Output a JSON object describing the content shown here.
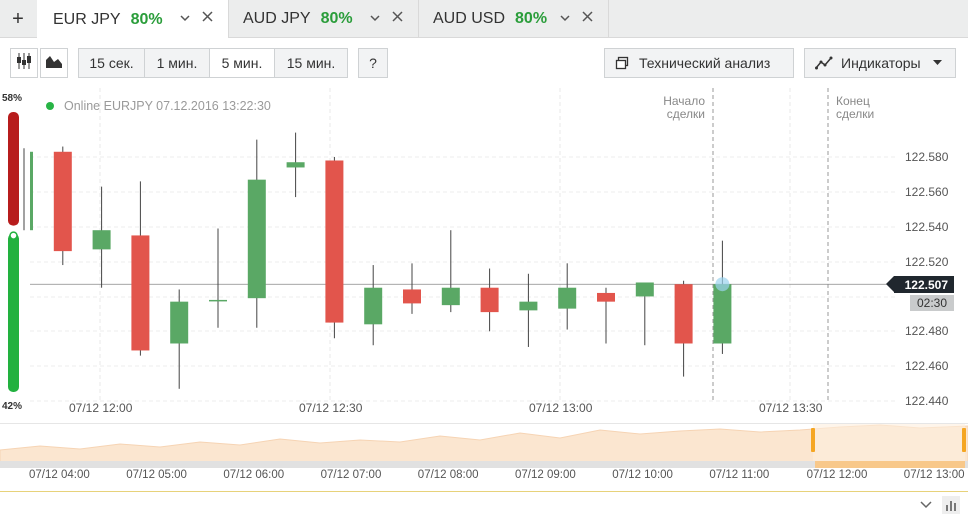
{
  "tabs": [
    {
      "symbol": "EUR JPY",
      "payout": "80%"
    },
    {
      "symbol": "AUD JPY",
      "payout": "80%"
    },
    {
      "symbol": "AUD USD",
      "payout": "80%"
    }
  ],
  "tab_add_label": "+",
  "toolbar": {
    "timeframes": [
      "15 сек.",
      "1 мин.",
      "5 мин.",
      "15 мин."
    ],
    "selected_timeframe": "5 мин.",
    "help_label": "?",
    "tech_analysis_label": "Технический анализ",
    "indicators_label": "Индикаторы"
  },
  "sentiment": {
    "up": "58%",
    "down": "42%",
    "up_fraction": 0.58
  },
  "status_text": "Online EURJPY 07.12.2016 13:22:30",
  "deal_start_label": [
    "Начало",
    "сделки"
  ],
  "deal_end_label": [
    "Конец",
    "сделки"
  ],
  "current_price": "122.507",
  "countdown": "02:30",
  "colors": {
    "up": "#5aa865",
    "down": "#e2554c",
    "payout": "#2a9d3a",
    "sentiment_up": "#22b13f",
    "sentiment_down": "#b71c1c"
  },
  "chart_data": {
    "type": "candlestick",
    "price_ticks": [
      "122.580",
      "122.560",
      "122.540",
      "122.520",
      "122.500",
      "122.480",
      "122.460",
      "122.440"
    ],
    "time_ticks": [
      "07/12 12:00",
      "07/12 12:30",
      "07/12 13:00",
      "07/12 13:30"
    ],
    "candles": [
      {
        "o": 122.538,
        "h": 122.585,
        "l": 122.538,
        "c": 122.583
      },
      {
        "o": 122.583,
        "h": 122.586,
        "l": 122.518,
        "c": 122.526
      },
      {
        "o": 122.527,
        "h": 122.563,
        "l": 122.505,
        "c": 122.538
      },
      {
        "o": 122.535,
        "h": 122.566,
        "l": 122.466,
        "c": 122.469
      },
      {
        "o": 122.473,
        "h": 122.504,
        "l": 122.447,
        "c": 122.497
      },
      {
        "o": 122.498,
        "h": 122.539,
        "l": 122.482,
        "c": 122.498
      },
      {
        "o": 122.499,
        "h": 122.59,
        "l": 122.482,
        "c": 122.567
      },
      {
        "o": 122.574,
        "h": 122.594,
        "l": 122.557,
        "c": 122.577
      },
      {
        "o": 122.578,
        "h": 122.58,
        "l": 122.476,
        "c": 122.485
      },
      {
        "o": 122.484,
        "h": 122.518,
        "l": 122.472,
        "c": 122.505
      },
      {
        "o": 122.504,
        "h": 122.519,
        "l": 122.49,
        "c": 122.496
      },
      {
        "o": 122.495,
        "h": 122.538,
        "l": 122.491,
        "c": 122.505
      },
      {
        "o": 122.505,
        "h": 122.516,
        "l": 122.48,
        "c": 122.491
      },
      {
        "o": 122.492,
        "h": 122.513,
        "l": 122.471,
        "c": 122.497
      },
      {
        "o": 122.493,
        "h": 122.519,
        "l": 122.481,
        "c": 122.505
      },
      {
        "o": 122.502,
        "h": 122.505,
        "l": 122.473,
        "c": 122.497
      },
      {
        "o": 122.5,
        "h": 122.508,
        "l": 122.472,
        "c": 122.508
      },
      {
        "o": 122.507,
        "h": 122.509,
        "l": 122.454,
        "c": 122.473
      },
      {
        "o": 122.473,
        "h": 122.532,
        "l": 122.467,
        "c": 122.507
      }
    ]
  },
  "navigator": {
    "time_ticks": [
      "07/12 04:00",
      "07/12 05:00",
      "07/12 06:00",
      "07/12 07:00",
      "07/12 08:00",
      "07/12 09:00",
      "07/12 10:00",
      "07/12 11:00",
      "07/12 12:00",
      "07/12 13:00"
    ]
  }
}
